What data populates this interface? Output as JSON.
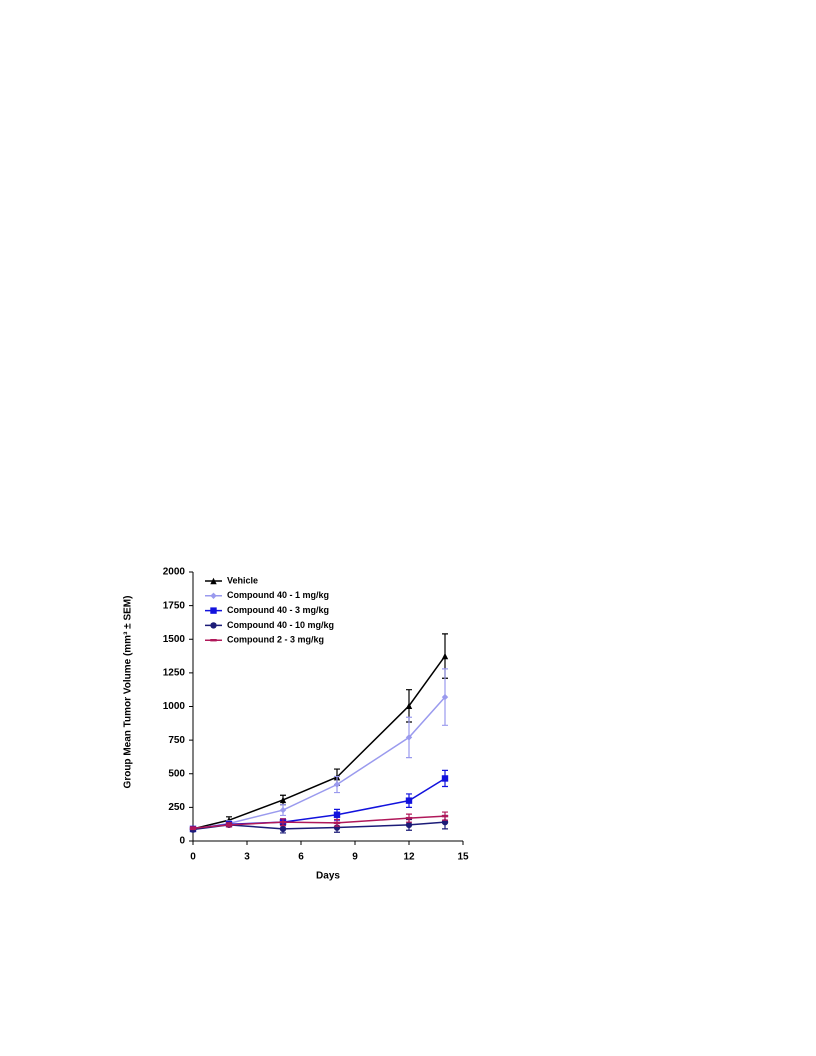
{
  "chart_data": {
    "type": "line",
    "x_label": "Days",
    "y_label": "Group Mean Tumor Volume (mm³ ± SEM)",
    "x": [
      0,
      2,
      5,
      8,
      12,
      14
    ],
    "xlim": [
      0,
      15
    ],
    "xticks": [
      0,
      3,
      6,
      9,
      12,
      15
    ],
    "ylim": [
      0,
      2000
    ],
    "yticks": [
      0,
      250,
      500,
      750,
      1000,
      1250,
      1500,
      1750,
      2000
    ],
    "grid": false,
    "legend": "upper left",
    "series": [
      {
        "name": "Vehicle",
        "color": "#000000",
        "marker": "triangle",
        "values": [
          90,
          155,
          305,
          475,
          1005,
          1375
        ],
        "errors": [
          10,
          25,
          35,
          60,
          120,
          165
        ]
      },
      {
        "name": "Compound 40 - 1 mg/kg",
        "color": "#9a9aee",
        "marker": "diamond",
        "values": [
          90,
          130,
          230,
          420,
          770,
          1070
        ],
        "errors": [
          10,
          20,
          40,
          60,
          150,
          210
        ]
      },
      {
        "name": "Compound 40 - 3 mg/kg",
        "color": "#1212dd",
        "marker": "square",
        "values": [
          90,
          125,
          140,
          195,
          300,
          465
        ],
        "errors": [
          10,
          15,
          25,
          40,
          50,
          60
        ]
      },
      {
        "name": "Compound 40 - 10 mg/kg",
        "color": "#1c1c78",
        "marker": "circle",
        "values": [
          85,
          120,
          90,
          100,
          120,
          140
        ],
        "errors": [
          10,
          15,
          30,
          35,
          40,
          50
        ]
      },
      {
        "name": "Compound 2 - 3 mg/kg",
        "color": "#b0185a",
        "marker": "dash",
        "values": [
          95,
          120,
          140,
          135,
          170,
          185
        ],
        "errors": [
          10,
          15,
          25,
          25,
          30,
          30
        ]
      }
    ]
  }
}
